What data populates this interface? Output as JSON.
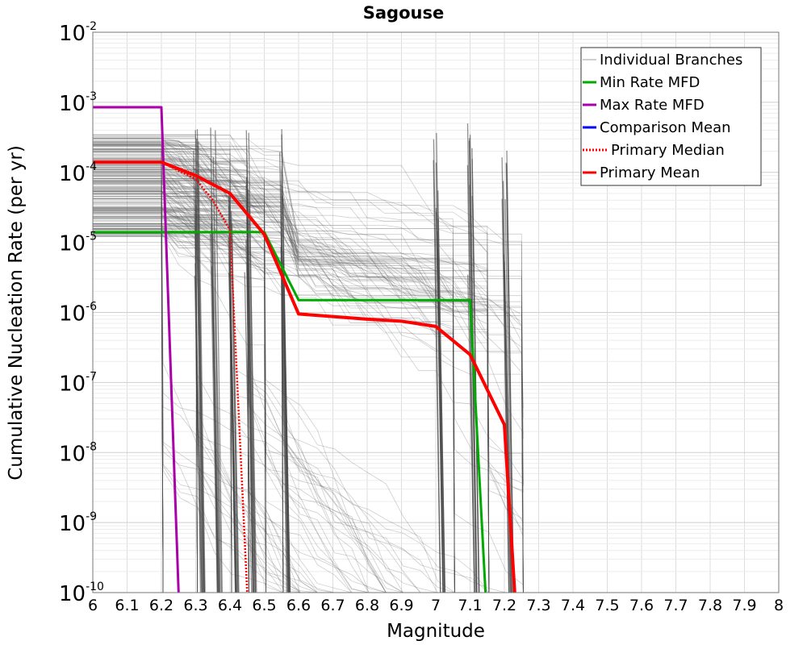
{
  "chart_data": {
    "type": "line",
    "title": "Sagouse",
    "xlabel": "Magnitude",
    "ylabel": "Cumulative Nucleation Rate (per yr)",
    "xlim": [
      6,
      8
    ],
    "ylim": [
      1e-10,
      0.01
    ],
    "yscale": "log",
    "grid": true,
    "legend_position": "top-right",
    "x_ticks": [
      "6",
      "6.1",
      "6.2",
      "6.3",
      "6.4",
      "6.5",
      "6.6",
      "6.7",
      "6.8",
      "6.9",
      "7",
      "7.1",
      "7.2",
      "7.3",
      "7.4",
      "7.5",
      "7.6",
      "7.7",
      "7.8",
      "7.9",
      "8"
    ],
    "y_ticks": [
      {
        "base": "10",
        "exp": "-10",
        "value": 1e-10
      },
      {
        "base": "10",
        "exp": "-9",
        "value": 1e-09
      },
      {
        "base": "10",
        "exp": "-8",
        "value": 1e-08
      },
      {
        "base": "10",
        "exp": "-7",
        "value": 1e-07
      },
      {
        "base": "10",
        "exp": "-6",
        "value": 1e-06
      },
      {
        "base": "10",
        "exp": "-5",
        "value": 1e-05
      },
      {
        "base": "10",
        "exp": "-4",
        "value": 0.0001
      },
      {
        "base": "10",
        "exp": "-3",
        "value": 0.001
      },
      {
        "base": "10",
        "exp": "-2",
        "value": 0.01
      }
    ],
    "series": [
      {
        "name": "Individual Branches",
        "color": "#404040",
        "style": "solid",
        "note_shape": "bundle",
        "x": [
          6.0,
          6.2,
          6.3,
          6.4,
          6.5,
          6.6,
          6.7,
          6.8,
          6.9,
          7.0,
          7.1,
          7.2,
          7.25
        ],
        "y": [
          0.0002,
          0.0002,
          0.00015,
          0.0001,
          5e-05,
          1e-05,
          1e-05,
          1e-05,
          1e-05,
          9e-06,
          6e-06,
          3e-06,
          1e-10
        ]
      },
      {
        "name": "Min Rate MFD",
        "color": "#00aa00",
        "style": "solid",
        "x": [
          6.0,
          6.5,
          6.6,
          7.1,
          7.145
        ],
        "y": [
          1.4e-05,
          1.4e-05,
          1.5e-06,
          1.5e-06,
          1e-10
        ]
      },
      {
        "name": "Max Rate MFD",
        "color": "#aa00aa",
        "style": "solid",
        "x": [
          6.0,
          6.2,
          6.25
        ],
        "y": [
          0.00085,
          0.00085,
          1e-10
        ]
      },
      {
        "name": "Comparison Mean",
        "color": "#0000ff",
        "style": "solid",
        "x": [],
        "y": []
      },
      {
        "name": "Primary Median",
        "color": "#ff0000",
        "style": "dotted",
        "x": [
          6.0,
          6.2,
          6.3,
          6.35,
          6.4,
          6.45
        ],
        "y": [
          0.00014,
          0.00014,
          8e-05,
          4e-05,
          1.5e-05,
          1e-10
        ]
      },
      {
        "name": "Primary Mean",
        "color": "#ff0000",
        "style": "solid",
        "x": [
          6.0,
          6.2,
          6.3,
          6.4,
          6.5,
          6.6,
          6.8,
          6.9,
          7.0,
          7.1,
          7.2,
          7.23
        ],
        "y": [
          0.00014,
          0.00014,
          9e-05,
          5e-05,
          1.3e-05,
          9.5e-07,
          8e-07,
          7.5e-07,
          6.3e-07,
          2.5e-07,
          2.5e-08,
          1e-10
        ]
      }
    ]
  }
}
